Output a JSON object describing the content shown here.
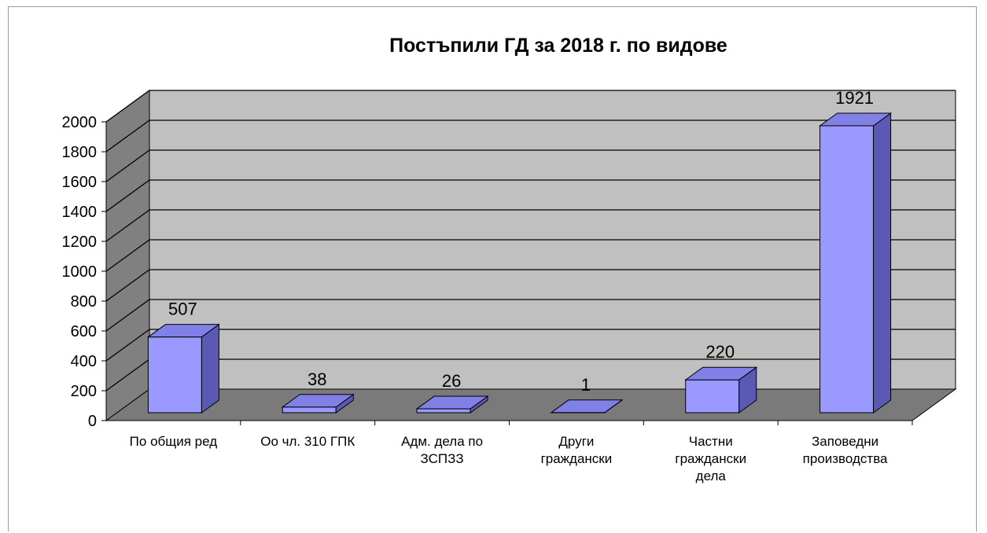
{
  "chart_data": {
    "type": "bar",
    "title": "Постъпили ГД за 2018 г. по видове",
    "xlabel": "",
    "ylabel": "",
    "ylim": [
      0,
      2000
    ],
    "yticks": [
      0,
      200,
      400,
      600,
      800,
      1000,
      1200,
      1400,
      1600,
      1800,
      2000
    ],
    "grid": true,
    "legend": "none",
    "three_d": true,
    "categories": [
      [
        "По общия ред"
      ],
      [
        "Оо чл. 310 ГПК"
      ],
      [
        "Адм. дела по",
        "ЗСПЗЗ"
      ],
      [
        "Други",
        "граждански"
      ],
      [
        "Частни",
        "граждански",
        "дела"
      ],
      [
        "Заповедни",
        "производства"
      ]
    ],
    "values": [
      507,
      38,
      26,
      1,
      220,
      1921
    ],
    "data_labels": [
      "507",
      "38",
      "26",
      "1",
      "220",
      "1921"
    ],
    "colors": {
      "bar_front": "#9999ff",
      "bar_top": "#8080e6",
      "bar_side": "#5a5ab4",
      "wall": "#c0c0c0",
      "side_wall": "#808080",
      "floor": "#7a7a7a",
      "grid": "#000000"
    }
  }
}
